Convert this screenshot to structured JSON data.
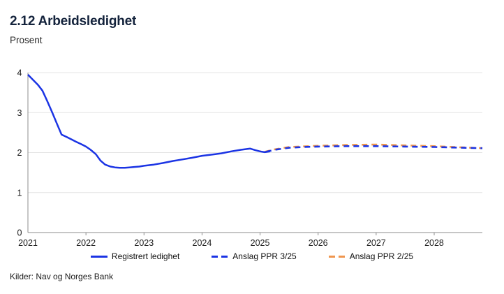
{
  "header": {
    "title": "2.12 Arbeidsledighet",
    "subtitle": "Prosent"
  },
  "source": "Kilder: Nav og Norges Bank",
  "colors": {
    "blue": "#1b34e4",
    "orange": "#ef964f",
    "grid": "#e4e4e4",
    "axis": "#8c8c8c",
    "tick_text": "#1a1a1a",
    "title_navy": "#14233c"
  },
  "legend": {
    "items": [
      {
        "label": "Registrert ledighet",
        "style": "solid",
        "color": "#1b34e4"
      },
      {
        "label": "Anslag PPR 3/25",
        "style": "dashed",
        "color": "#1b34e4"
      },
      {
        "label": "Anslag PPR 2/25",
        "style": "dashed",
        "color": "#ef964f"
      }
    ]
  },
  "chart_data": {
    "type": "line",
    "title": "2.12 Arbeidsledighet",
    "ylabel": "Prosent",
    "xlim": [
      2021,
      2028.83
    ],
    "ylim": [
      0,
      4
    ],
    "y_ticks": [
      0,
      1,
      2,
      3,
      4
    ],
    "x_ticks": [
      2021,
      2022,
      2023,
      2024,
      2025,
      2026,
      2027,
      2028
    ],
    "grid": "horizontal",
    "legend_position": "bottom",
    "series": [
      {
        "name": "Registrert ledighet",
        "style": "solid",
        "color": "#1b34e4",
        "points": [
          [
            2021.0,
            3.95
          ],
          [
            2021.08,
            3.83
          ],
          [
            2021.17,
            3.7
          ],
          [
            2021.25,
            3.55
          ],
          [
            2021.33,
            3.3
          ],
          [
            2021.42,
            3.0
          ],
          [
            2021.5,
            2.72
          ],
          [
            2021.58,
            2.45
          ],
          [
            2021.67,
            2.39
          ],
          [
            2021.75,
            2.33
          ],
          [
            2021.83,
            2.27
          ],
          [
            2021.92,
            2.21
          ],
          [
            2022.0,
            2.15
          ],
          [
            2022.08,
            2.07
          ],
          [
            2022.17,
            1.96
          ],
          [
            2022.25,
            1.8
          ],
          [
            2022.33,
            1.7
          ],
          [
            2022.42,
            1.65
          ],
          [
            2022.5,
            1.63
          ],
          [
            2022.58,
            1.62
          ],
          [
            2022.67,
            1.62
          ],
          [
            2022.75,
            1.63
          ],
          [
            2022.83,
            1.64
          ],
          [
            2022.92,
            1.65
          ],
          [
            2023.0,
            1.67
          ],
          [
            2023.17,
            1.7
          ],
          [
            2023.33,
            1.74
          ],
          [
            2023.5,
            1.79
          ],
          [
            2023.67,
            1.83
          ],
          [
            2023.83,
            1.87
          ],
          [
            2024.0,
            1.92
          ],
          [
            2024.17,
            1.95
          ],
          [
            2024.33,
            1.98
          ],
          [
            2024.5,
            2.03
          ],
          [
            2024.67,
            2.07
          ],
          [
            2024.83,
            2.1
          ],
          [
            2024.92,
            2.06
          ],
          [
            2025.0,
            2.03
          ],
          [
            2025.08,
            2.01
          ],
          [
            2025.17,
            2.03
          ]
        ]
      },
      {
        "name": "Anslag PPR 3/25",
        "style": "dashed",
        "color": "#1b34e4",
        "points": [
          [
            2025.1,
            2.02
          ],
          [
            2025.25,
            2.07
          ],
          [
            2025.5,
            2.12
          ],
          [
            2025.75,
            2.14
          ],
          [
            2026.0,
            2.15
          ],
          [
            2026.5,
            2.16
          ],
          [
            2027.0,
            2.16
          ],
          [
            2027.5,
            2.15
          ],
          [
            2028.0,
            2.14
          ],
          [
            2028.5,
            2.12
          ],
          [
            2028.83,
            2.11
          ]
        ]
      },
      {
        "name": "Anslag PPR 2/25",
        "style": "dashed",
        "color": "#ef964f",
        "points": [
          [
            2025.0,
            2.04
          ],
          [
            2025.08,
            2.02
          ],
          [
            2025.25,
            2.08
          ],
          [
            2025.5,
            2.14
          ],
          [
            2026.0,
            2.17
          ],
          [
            2026.5,
            2.19
          ],
          [
            2027.0,
            2.2
          ],
          [
            2027.5,
            2.18
          ],
          [
            2028.0,
            2.16
          ],
          [
            2028.5,
            2.13
          ],
          [
            2028.83,
            2.11
          ]
        ]
      }
    ]
  }
}
